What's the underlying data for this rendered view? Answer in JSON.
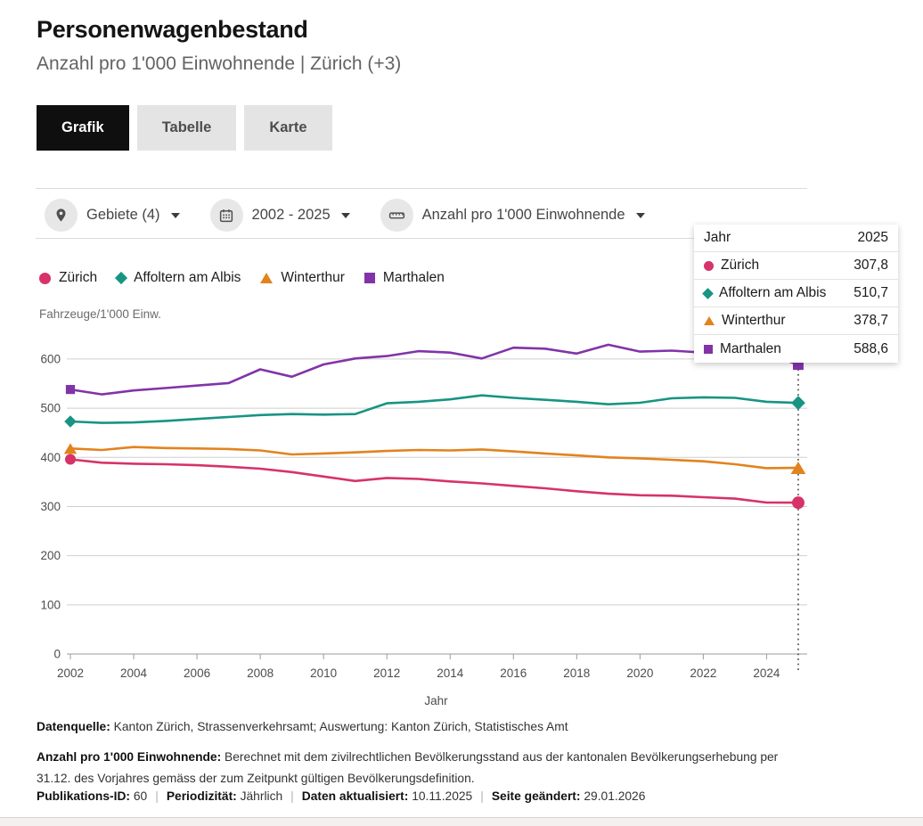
{
  "header": {
    "title": "Personenwagenbestand",
    "subtitle": "Anzahl pro 1'000 Einwohnende | Zürich (+3)"
  },
  "tabs": [
    {
      "label": "Grafik",
      "active": true
    },
    {
      "label": "Tabelle",
      "active": false
    },
    {
      "label": "Karte",
      "active": false
    }
  ],
  "filters": [
    {
      "icon": "location-pin-icon",
      "label": "Gebiete (4)"
    },
    {
      "icon": "calendar-icon",
      "label": "2002 - 2025"
    },
    {
      "icon": "ruler-icon",
      "label": "Anzahl pro 1'000 Einwohnende"
    }
  ],
  "tooltip": {
    "header_label": "Jahr",
    "header_value": "2025",
    "rows": [
      {
        "label": "Zürich",
        "value": "307,8"
      },
      {
        "label": "Affoltern am Albis",
        "value": "510,7"
      },
      {
        "label": "Winterthur",
        "value": "378,7"
      },
      {
        "label": "Marthalen",
        "value": "588,6"
      }
    ]
  },
  "chart_data": {
    "type": "line",
    "title": "Personenwagenbestand",
    "xlabel": "Jahr",
    "ylabel": "Fahrzeuge/1'000 Einw.",
    "x": [
      2002,
      2003,
      2004,
      2005,
      2006,
      2007,
      2008,
      2009,
      2010,
      2011,
      2012,
      2013,
      2014,
      2015,
      2016,
      2017,
      2018,
      2019,
      2020,
      2021,
      2022,
      2023,
      2024,
      2025
    ],
    "series": [
      {
        "name": "Zürich",
        "color": "#d63368",
        "marker": "circle",
        "values": [
          396,
          389,
          387,
          386,
          384,
          381,
          377,
          370,
          361,
          352,
          358,
          356,
          351,
          347,
          342,
          337,
          331,
          326,
          323,
          322,
          319,
          316,
          308,
          307.8
        ]
      },
      {
        "name": "Affoltern am Albis",
        "color": "#189482",
        "marker": "diamond",
        "values": [
          473,
          470,
          471,
          474,
          478,
          482,
          486,
          488,
          487,
          488,
          510,
          513,
          518,
          526,
          521,
          517,
          513,
          508,
          511,
          520,
          522,
          521,
          513,
          510.7
        ]
      },
      {
        "name": "Winterthur",
        "color": "#e2831d",
        "marker": "triangle",
        "values": [
          418,
          415,
          421,
          419,
          418,
          417,
          414,
          406,
          408,
          410,
          413,
          415,
          414,
          416,
          412,
          408,
          404,
          400,
          398,
          395,
          392,
          386,
          378,
          378.7
        ]
      },
      {
        "name": "Marthalen",
        "color": "#8134a8",
        "marker": "square",
        "values": [
          538,
          528,
          536,
          541,
          546,
          551,
          579,
          564,
          589,
          601,
          606,
          616,
          613,
          601,
          623,
          621,
          611,
          629,
          615,
          617,
          613,
          612,
          611,
          588.6
        ]
      }
    ],
    "ylim": [
      0,
      650
    ],
    "yticks": [
      0,
      100,
      200,
      300,
      400,
      500,
      600
    ],
    "xticks": [
      2002,
      2004,
      2006,
      2008,
      2010,
      2012,
      2014,
      2016,
      2018,
      2020,
      2022,
      2024
    ],
    "hover_x": 2025,
    "grid": true,
    "legend_position": "top"
  },
  "footer": {
    "source_label": "Datenquelle:",
    "source_text": "Kanton Zürich, Strassenverkehrsamt; Auswertung: Kanton Zürich, Statistisches Amt",
    "definition_label": "Anzahl pro 1'000 Einwohnende:",
    "definition_text": "Berechnet mit dem zivilrechtlichen Bevölkerungsstand aus der kantonalen Bevölkerungserhebung per 31.12. des Vorjahres gemäss der zum Zeitpunkt gültigen Bevölkerungsdefinition.",
    "meta": [
      {
        "label": "Publikations-ID:",
        "value": "60"
      },
      {
        "label": "Periodizität:",
        "value": "Jährlich"
      },
      {
        "label": "Daten aktualisiert:",
        "value": "10.11.2025"
      },
      {
        "label": "Seite geändert:",
        "value": "29.01.2026"
      }
    ]
  }
}
